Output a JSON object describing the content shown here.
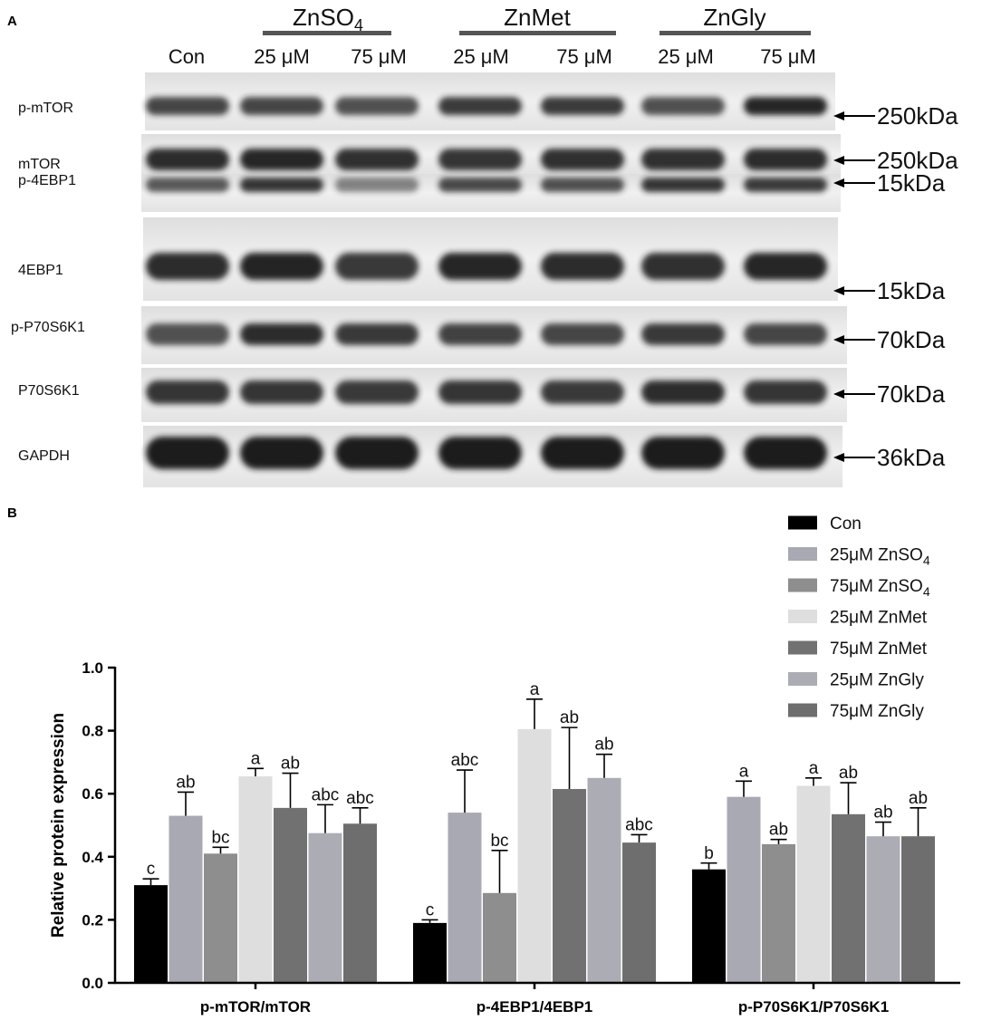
{
  "panels": {
    "a": "A",
    "b": "B"
  },
  "blot": {
    "groups": [
      {
        "name": "ZnSO",
        "sub": "4"
      },
      {
        "name": "ZnMet"
      },
      {
        "name": "ZnGly"
      }
    ],
    "lanes": [
      "Con",
      "25 μM",
      "75 μM",
      "25 μM",
      "75 μM",
      "25 μM",
      "75 μM"
    ],
    "rows": [
      {
        "label": "p-mTOR",
        "size": "250kDa"
      },
      {
        "label": "mTOR",
        "size": "250kDa"
      },
      {
        "label": "p-4EBP1",
        "size": "15kDa"
      },
      {
        "label": "4EBP1",
        "size": "15kDa"
      },
      {
        "label": "p-P70S6K1",
        "size": "70kDa"
      },
      {
        "label": "P70S6K1",
        "size": "70kDa"
      },
      {
        "label": "GAPDH",
        "size": "36kDa"
      }
    ]
  },
  "chart_data": {
    "type": "bar",
    "categories": [
      "p-mTOR/mTOR",
      "p-4EBP1/4EBP1",
      "p-P70S6K1/P70S6K1"
    ],
    "ylabel": "Relative protein expression",
    "ylim": [
      0.0,
      1.0
    ],
    "yticks": [
      0.0,
      0.2,
      0.4,
      0.6,
      0.8,
      1.0
    ],
    "grid": false,
    "legend_position": "top-right",
    "series": [
      {
        "name": "Con",
        "color": "#000000",
        "values": [
          0.31,
          0.19,
          0.36
        ],
        "errors": [
          0.02,
          0.01,
          0.02
        ],
        "letters": [
          "c",
          "c",
          "b"
        ]
      },
      {
        "name": "25μM ZnSO",
        "sub": "4",
        "color": "#a9a9b3",
        "values": [
          0.53,
          0.54,
          0.59
        ],
        "errors": [
          0.075,
          0.135,
          0.05
        ],
        "letters": [
          "ab",
          "abc",
          "a"
        ]
      },
      {
        "name": "75μM ZnSO",
        "sub": "4",
        "color": "#8e8e8e",
        "values": [
          0.41,
          0.285,
          0.44
        ],
        "errors": [
          0.02,
          0.135,
          0.015
        ],
        "letters": [
          "bc",
          "bc",
          "ab"
        ]
      },
      {
        "name": "25μM ZnMet",
        "color": "#dedede",
        "values": [
          0.655,
          0.805,
          0.625
        ],
        "errors": [
          0.025,
          0.095,
          0.025
        ],
        "letters": [
          "a",
          "a",
          "a"
        ]
      },
      {
        "name": "75μM ZnMet",
        "color": "#717171",
        "values": [
          0.555,
          0.615,
          0.535
        ],
        "errors": [
          0.11,
          0.195,
          0.1
        ],
        "letters": [
          "ab",
          "ab",
          "ab"
        ]
      },
      {
        "name": "25μM ZnGly",
        "color": "#acacb4",
        "values": [
          0.475,
          0.65,
          0.465
        ],
        "errors": [
          0.09,
          0.075,
          0.045
        ],
        "letters": [
          "abc",
          "ab",
          "ab"
        ]
      },
      {
        "name": "75μM ZnGly",
        "color": "#6e6e6e",
        "values": [
          0.505,
          0.445,
          0.465
        ],
        "errors": [
          0.05,
          0.025,
          0.09
        ],
        "letters": [
          "abc",
          "abc",
          "ab"
        ]
      }
    ]
  }
}
